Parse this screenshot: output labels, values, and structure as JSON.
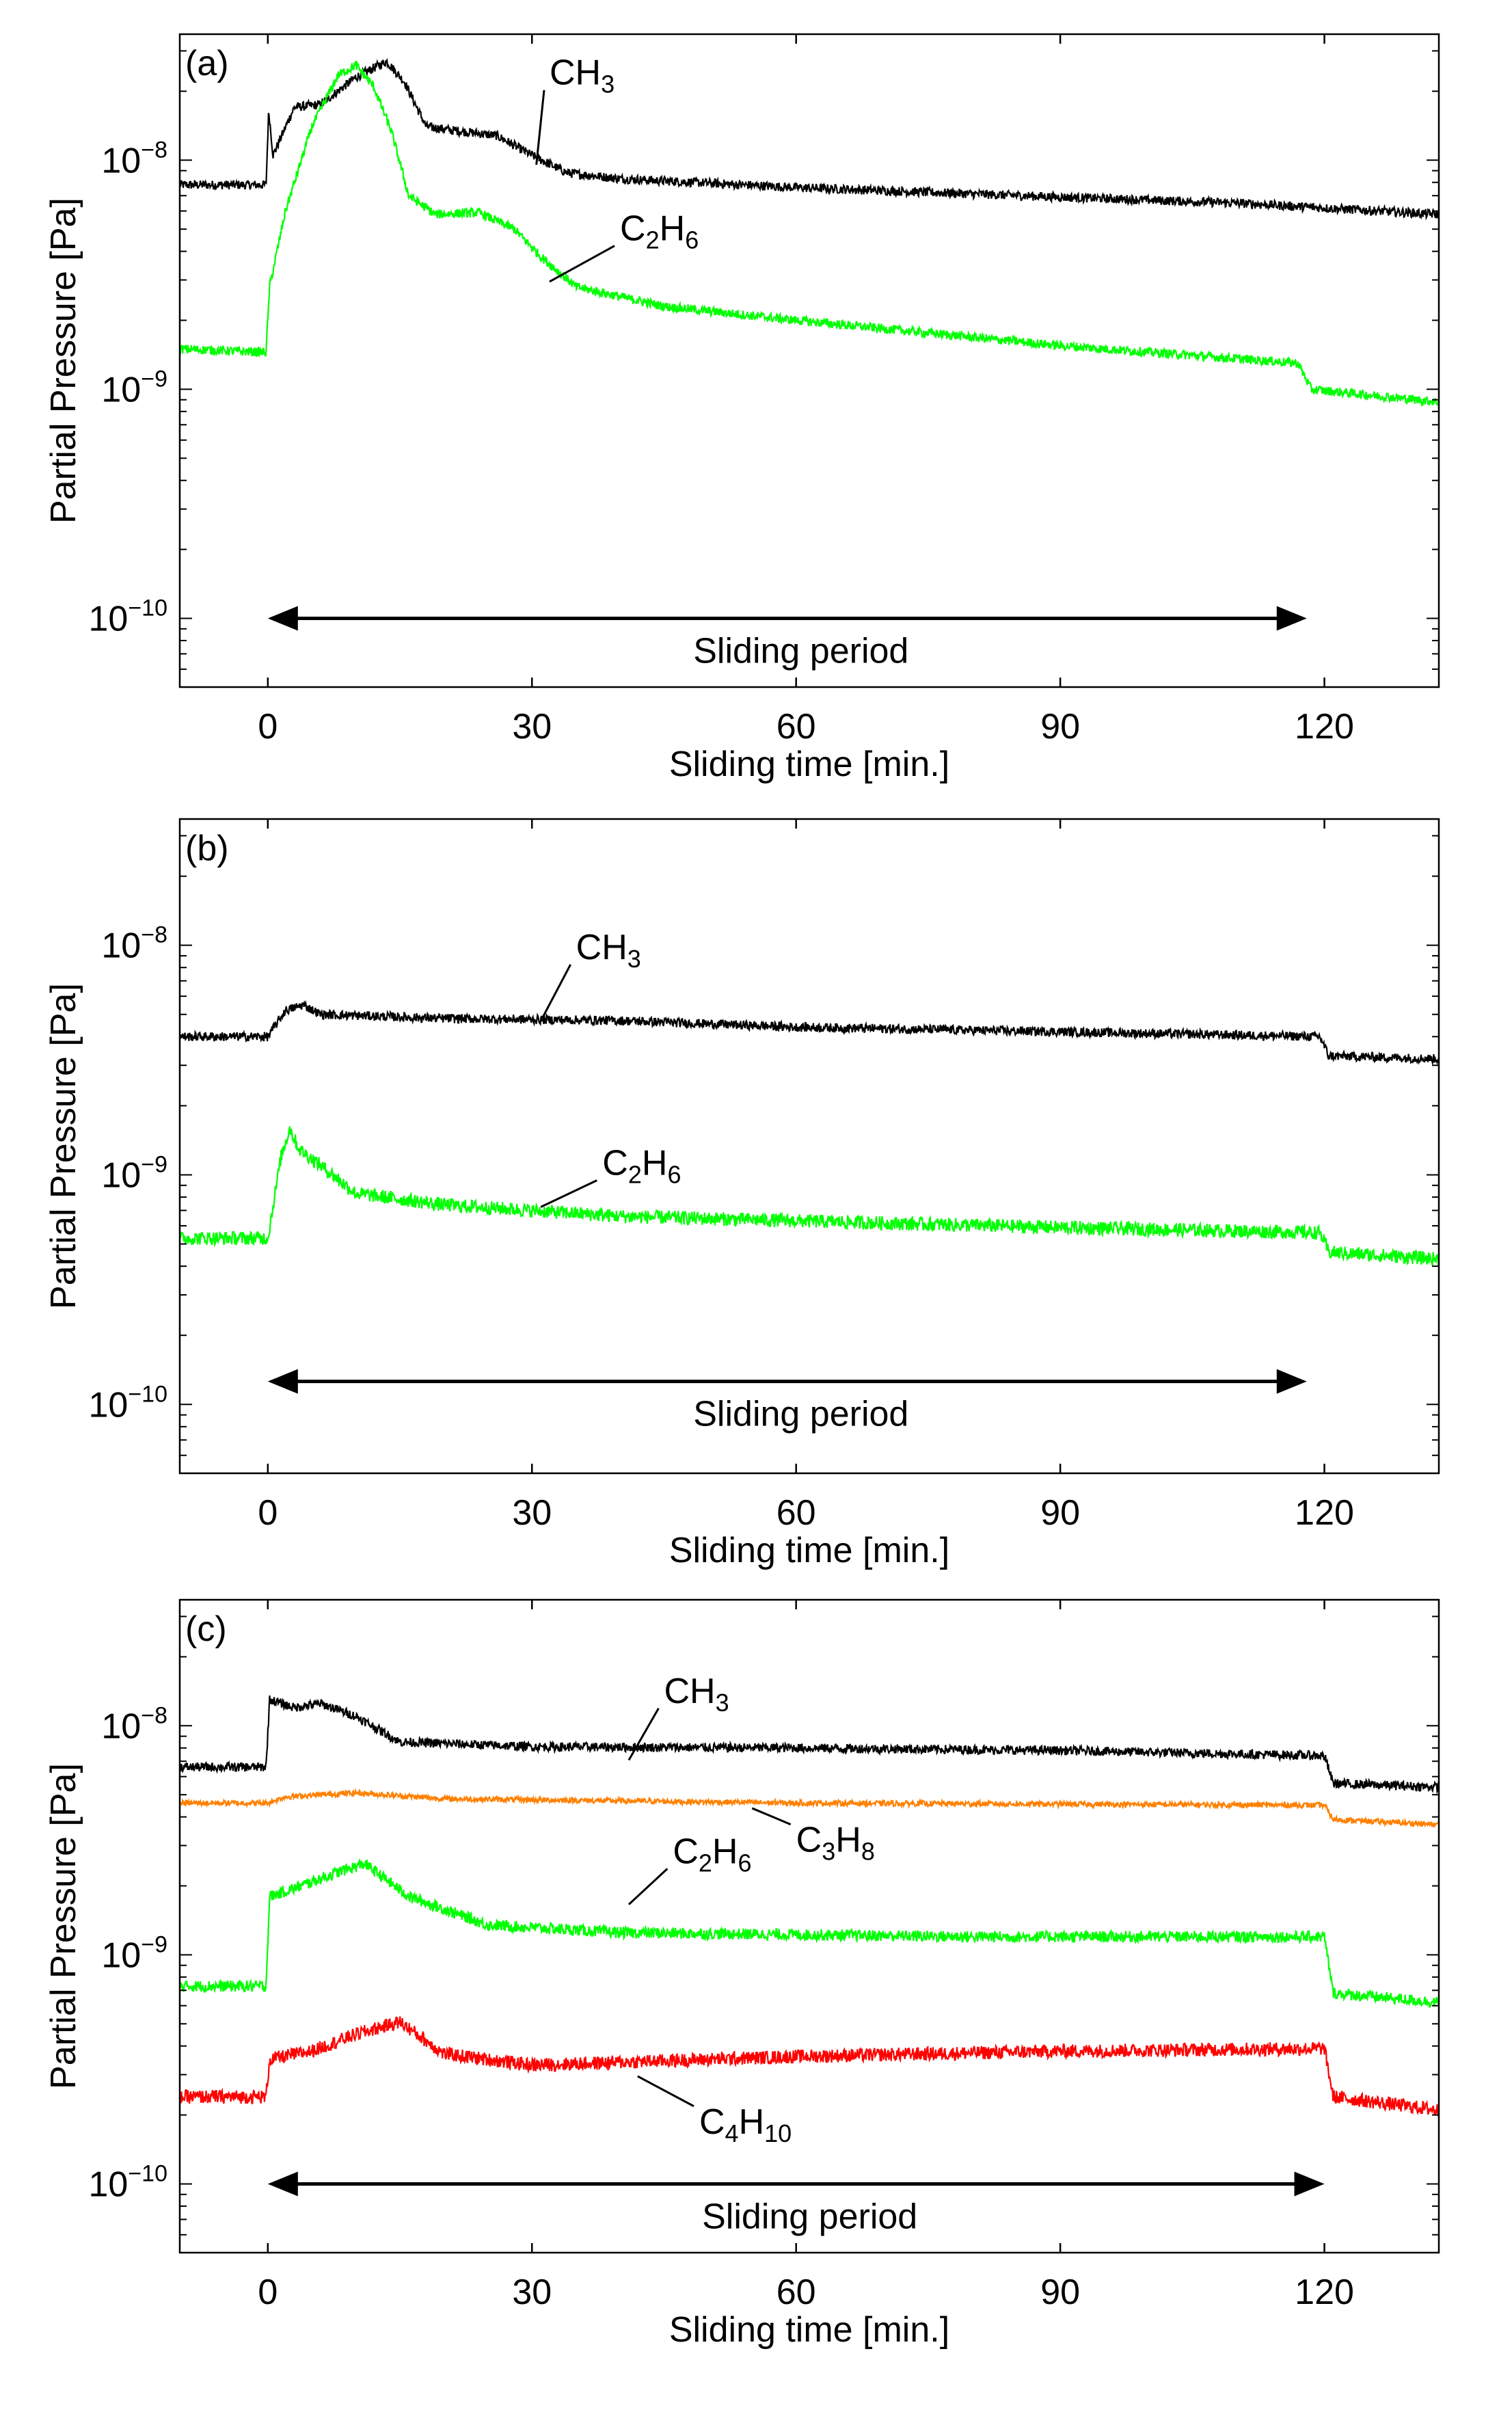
{
  "figure": {
    "panels_count": 3
  },
  "chart_data": [
    {
      "type": "line",
      "panel_label": "(a)",
      "title": "",
      "xlabel": "Sliding time [min.]",
      "ylabel": "Partial Pressure [Pa]",
      "xlim": [
        -10,
        133
      ],
      "ylim_log10": [
        -10.3,
        -7.45
      ],
      "y_scale": "log",
      "x_ticks": [
        0,
        30,
        60,
        90,
        120
      ],
      "x_tick_labels": [
        "0",
        "30",
        "60",
        "90",
        "120"
      ],
      "y_ticks_log10": [
        -10,
        -9,
        -8
      ],
      "y_tick_labels": [
        "10-10",
        "10-9",
        "10-8"
      ],
      "annotation": {
        "text": "Sliding period",
        "x_start": 0,
        "x_end": 118,
        "y_log10": -10.0
      },
      "series": [
        {
          "name": "CH3",
          "label_base": "CH",
          "label_sub": "3",
          "color": "#000000",
          "noise": 0.02,
          "points": [
            [
              -10,
              7.8e-09
            ],
            [
              -0.2,
              7.8e-09
            ],
            [
              0.1,
              1.65e-08
            ],
            [
              0.6,
              1.05e-08
            ],
            [
              3,
              1.7e-08
            ],
            [
              6,
              1.75e-08
            ],
            [
              10,
              2.3e-08
            ],
            [
              13.5,
              2.7e-08
            ],
            [
              15.5,
              2.2e-08
            ],
            [
              18,
              1.4e-08
            ],
            [
              21,
              1.35e-08
            ],
            [
              26,
              1.28e-08
            ],
            [
              30,
              1.05e-08
            ],
            [
              34,
              8.8e-09
            ],
            [
              40,
              8.3e-09
            ],
            [
              60,
              7.6e-09
            ],
            [
              90,
              6.9e-09
            ],
            [
              110,
              6.5e-09
            ],
            [
              133,
              5.8e-09
            ]
          ],
          "label_at": {
            "x": 32,
            "y_log10": -7.67,
            "pointer_x": 30.5,
            "pointer_y_log10": -8.02
          }
        },
        {
          "name": "C2H6",
          "label_base": "C",
          "label_sub1": "2",
          "label_mid": "H",
          "label_sub": "6",
          "color": "#00ff00",
          "noise": 0.02,
          "points": [
            [
              -10,
              1.5e-09
            ],
            [
              -0.2,
              1.45e-09
            ],
            [
              0.2,
              2.8e-09
            ],
            [
              2,
              6e-09
            ],
            [
              5,
              1.4e-08
            ],
            [
              8,
              2.35e-08
            ],
            [
              10,
              2.6e-08
            ],
            [
              12,
              2.1e-08
            ],
            [
              14,
              1.35e-08
            ],
            [
              16,
              7e-09
            ],
            [
              19,
              5.8e-09
            ],
            [
              24,
              5.9e-09
            ],
            [
              28,
              5e-09
            ],
            [
              31,
              3.8e-09
            ],
            [
              35,
              2.8e-09
            ],
            [
              45,
              2.3e-09
            ],
            [
              60,
              2e-09
            ],
            [
              90,
              1.55e-09
            ],
            [
              117,
              1.3e-09
            ],
            [
              118.5,
              1e-09
            ],
            [
              133,
              8.8e-10
            ]
          ],
          "label_at": {
            "x": 40,
            "y_log10": -8.35,
            "pointer_x": 32,
            "pointer_y_log10": -8.53
          }
        }
      ]
    },
    {
      "type": "line",
      "panel_label": "(b)",
      "title": "",
      "xlabel": "Sliding time [min.]",
      "ylabel": "Partial Pressure [Pa]",
      "xlim": [
        -10,
        133
      ],
      "ylim_log10": [
        -10.3,
        -7.45
      ],
      "y_scale": "log",
      "x_ticks": [
        0,
        30,
        60,
        90,
        120
      ],
      "x_tick_labels": [
        "0",
        "30",
        "60",
        "90",
        "120"
      ],
      "y_ticks_log10": [
        -10,
        -9,
        -8
      ],
      "y_tick_labels": [
        "10-10",
        "10-9",
        "10-8"
      ],
      "annotation": {
        "text": "Sliding period",
        "x_start": 0,
        "x_end": 118,
        "y_log10": -9.9
      },
      "series": [
        {
          "name": "CH3",
          "label_base": "CH",
          "label_sub": "3",
          "color": "#000000",
          "noise": 0.02,
          "points": [
            [
              -10,
              4e-09
            ],
            [
              0,
              4e-09
            ],
            [
              2,
              5.2e-09
            ],
            [
              4,
              5.5e-09
            ],
            [
              6,
              5e-09
            ],
            [
              20,
              4.8e-09
            ],
            [
              40,
              4.7e-09
            ],
            [
              60,
              4.4e-09
            ],
            [
              90,
              4.2e-09
            ],
            [
              119.5,
              4e-09
            ],
            [
              120.5,
              3.3e-09
            ],
            [
              133,
              3.2e-09
            ]
          ],
          "label_at": {
            "x": 35,
            "y_log10": -8.06,
            "pointer_x": 31,
            "pointer_y_log10": -8.33
          }
        },
        {
          "name": "C2H6",
          "label_base": "C",
          "label_sub1": "2",
          "label_mid": "H",
          "label_sub": "6",
          "color": "#00ff00",
          "noise": 0.03,
          "points": [
            [
              -10,
              5.3e-10
            ],
            [
              0,
              5.3e-10
            ],
            [
              1.5,
              1.2e-09
            ],
            [
              2.5,
              1.6e-09
            ],
            [
              3.5,
              1.3e-09
            ],
            [
              6,
              1.1e-09
            ],
            [
              10,
              8.3e-10
            ],
            [
              20,
              7.4e-10
            ],
            [
              40,
              6.6e-10
            ],
            [
              60,
              6.3e-10
            ],
            [
              90,
              5.9e-10
            ],
            [
              119.5,
              5.6e-10
            ],
            [
              120.5,
              4.6e-10
            ],
            [
              133,
              4.3e-10
            ]
          ],
          "label_at": {
            "x": 38,
            "y_log10": -9.0,
            "pointer_x": 31,
            "pointer_y_log10": -9.14
          }
        }
      ]
    },
    {
      "type": "line",
      "panel_label": "(c)",
      "title": "",
      "xlabel": "Sliding time [min.]",
      "ylabel": "Partial Pressure [Pa]",
      "xlim": [
        -10,
        133
      ],
      "ylim_log10": [
        -10.3,
        -7.45
      ],
      "y_scale": "log",
      "x_ticks": [
        0,
        30,
        60,
        90,
        120
      ],
      "x_tick_labels": [
        "0",
        "30",
        "60",
        "90",
        "120"
      ],
      "y_ticks_log10": [
        -10,
        -9,
        -8
      ],
      "y_tick_labels": [
        "10-10",
        "10-9",
        "10-8"
      ],
      "annotation": {
        "text": "Sliding period",
        "x_start": 0,
        "x_end": 120,
        "y_log10": -10.0
      },
      "series": [
        {
          "name": "CH3",
          "label_base": "CH",
          "label_sub": "3",
          "color": "#000000",
          "noise": 0.02,
          "points": [
            [
              -10,
              6.6e-09
            ],
            [
              -0.2,
              6.6e-09
            ],
            [
              0.2,
              1.3e-08
            ],
            [
              3,
              1.2e-08
            ],
            [
              6,
              1.25e-08
            ],
            [
              10,
              1.1e-08
            ],
            [
              15,
              8.5e-09
            ],
            [
              30,
              8.1e-09
            ],
            [
              60,
              8e-09
            ],
            [
              90,
              7.8e-09
            ],
            [
              120,
              7.4e-09
            ],
            [
              121,
              5.6e-09
            ],
            [
              133,
              5.4e-09
            ]
          ],
          "label_at": {
            "x": 45,
            "y_log10": -7.9,
            "pointer_x": 41,
            "pointer_y_log10": -8.15
          }
        },
        {
          "name": "C3H8",
          "label_base": "C",
          "label_sub1": "3",
          "label_mid": "H",
          "label_sub": "8",
          "color": "#ff8000",
          "noise": 0.012,
          "points": [
            [
              -10,
              4.6e-09
            ],
            [
              0,
              4.6e-09
            ],
            [
              2,
              4.9e-09
            ],
            [
              10,
              5.1e-09
            ],
            [
              20,
              4.8e-09
            ],
            [
              60,
              4.6e-09
            ],
            [
              120,
              4.5e-09
            ],
            [
              121,
              3.9e-09
            ],
            [
              133,
              3.7e-09
            ]
          ],
          "label_at": {
            "x": 60,
            "y_log10": -8.55,
            "pointer_x": 55,
            "pointer_y_log10": -8.36
          }
        },
        {
          "name": "C2H6",
          "label_base": "C",
          "label_sub1": "2",
          "label_mid": "H",
          "label_sub": "6",
          "color": "#00ff00",
          "noise": 0.025,
          "points": [
            [
              -10,
              7.3e-10
            ],
            [
              -0.2,
              7.3e-10
            ],
            [
              0.2,
              1.8e-09
            ],
            [
              3,
              1.95e-09
            ],
            [
              8,
              2.3e-09
            ],
            [
              11,
              2.5e-09
            ],
            [
              16,
              1.8e-09
            ],
            [
              25,
              1.35e-09
            ],
            [
              40,
              1.25e-09
            ],
            [
              80,
              1.2e-09
            ],
            [
              120,
              1.2e-09
            ],
            [
              121,
              6.8e-10
            ],
            [
              133,
              6.2e-10
            ]
          ],
          "label_at": {
            "x": 46,
            "y_log10": -8.6,
            "pointer_x": 41,
            "pointer_y_log10": -8.78
          }
        },
        {
          "name": "C4H10",
          "label_base": "C",
          "label_sub1": "4",
          "label_mid": "H",
          "label_sub": "10",
          "color": "#ff0000",
          "noise": 0.03,
          "points": [
            [
              -10,
              2.4e-10
            ],
            [
              -0.2,
              2.4e-10
            ],
            [
              0.2,
              3.5e-10
            ],
            [
              5,
              3.8e-10
            ],
            [
              10,
              4.5e-10
            ],
            [
              15,
              5.1e-10
            ],
            [
              20,
              3.7e-10
            ],
            [
              30,
              3.3e-10
            ],
            [
              60,
              3.6e-10
            ],
            [
              90,
              3.8e-10
            ],
            [
              120,
              3.9e-10
            ],
            [
              121,
              2.4e-10
            ],
            [
              133,
              2.1e-10
            ]
          ],
          "label_at": {
            "x": 49,
            "y_log10": -9.78,
            "pointer_x": 42,
            "pointer_y_log10": -9.53
          }
        }
      ]
    }
  ]
}
